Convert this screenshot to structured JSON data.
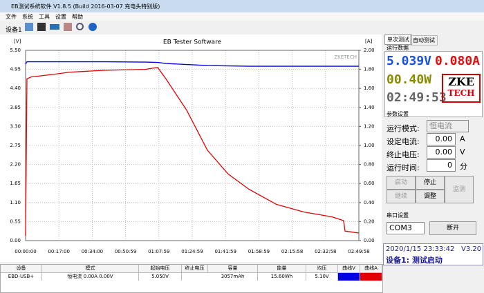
{
  "window": {
    "title": "EB测试系统软件 V1.8.5 (Build 2016-03-07 充电头特别版)"
  },
  "menu": [
    "文件",
    "系统",
    "工具",
    "设置",
    "帮助"
  ],
  "toolbar": {
    "device": "设备1"
  },
  "chart": {
    "type": "line",
    "title": "EB Tester Software",
    "watermark": "ZKETECH",
    "ylabel": "[V]",
    "y2label": "[A]",
    "grid": true,
    "x": [
      0,
      42,
      169,
      910,
      1333,
      2391,
      3660,
      4041,
      4295,
      4930,
      5564,
      6199,
      6834,
      7680,
      8526,
      9373,
      9732,
      9775,
      10198
    ],
    "xlim": [
      0,
      10198
    ],
    "xticks": [
      {
        "value": 0,
        "label": "00:00:00"
      },
      {
        "value": 1020,
        "label": "00:17:00"
      },
      {
        "value": 2040,
        "label": "00:34:00"
      },
      {
        "value": 3059,
        "label": "00:50:59"
      },
      {
        "value": 4079,
        "label": "01:07:59"
      },
      {
        "value": 5099,
        "label": "01:24:59"
      },
      {
        "value": 6119,
        "label": "01:41:59"
      },
      {
        "value": 7139,
        "label": "01:58:59"
      },
      {
        "value": 8158,
        "label": "02:15:58"
      },
      {
        "value": 9178,
        "label": "02:32:58"
      },
      {
        "value": 10198,
        "label": "02:49:58"
      }
    ],
    "ylim": [
      0,
      5.5
    ],
    "yticks": [
      {
        "value": 0,
        "label": "0.00"
      },
      0.55,
      {
        "value": 1.1,
        "label": "1.10"
      },
      1.65,
      {
        "value": 2.2,
        "label": "2.20"
      },
      2.75,
      {
        "value": 3.3,
        "label": "3.30"
      },
      3.85,
      {
        "value": 4.4,
        "label": "4.40"
      },
      4.95,
      {
        "value": 5.5,
        "label": "5.50"
      }
    ],
    "y2lim": [
      0,
      2
    ],
    "y2ticks": [
      {
        "value": 0,
        "label": "0.00"
      },
      {
        "value": 0.2,
        "label": "0.20"
      },
      {
        "value": 0.4,
        "label": "0.40"
      },
      {
        "value": 0.6,
        "label": "0.60"
      },
      {
        "value": 0.8,
        "label": "0.80"
      },
      {
        "value": 1,
        "label": "1.00"
      },
      {
        "value": 1.2,
        "label": "1.20"
      },
      {
        "value": 1.4,
        "label": "1.40"
      },
      {
        "value": 1.6,
        "label": "1.60"
      },
      {
        "value": 1.8,
        "label": "1.80"
      },
      {
        "value": 2,
        "label": "2.00"
      }
    ],
    "series": [
      {
        "color": "#0000e0",
        "values": [
          5.1,
          5.17,
          5.17,
          5.17,
          5.17,
          5.17,
          5.16,
          5.15,
          5.12,
          5.09,
          5.06,
          5.05,
          5.04,
          5.04,
          5.04,
          5.04,
          5.04,
          5.04,
          5.04
        ]
      },
      {
        "color": "#e00000",
        "axis": "y2",
        "values": [
          0.05,
          1.7,
          1.72,
          1.75,
          1.77,
          1.79,
          1.8,
          1.82,
          1.7,
          1.37,
          0.95,
          0.7,
          0.54,
          0.38,
          0.3,
          0.25,
          0.21,
          0.1,
          0.08
        ]
      }
    ]
  },
  "table": {
    "headers": [
      "设备",
      "模式",
      "起始电压",
      "终止电压",
      "容量",
      "能量",
      "均压",
      "曲线V",
      "曲线A"
    ],
    "row": {
      "device": "EBD-USB+",
      "mode": "恒电流  0.00A  0.00V",
      "start_v": "5.050V",
      "capacity": "3057mAh",
      "energy": "15.60Wh",
      "avg_v": "5.10V"
    }
  },
  "panel": {
    "tabs": [
      "单次测试",
      "自动测试"
    ],
    "run_group": "运行数据",
    "voltage": "5.039V",
    "current": "0.080A",
    "power": "00.40W",
    "time": "02:49:53",
    "logo": [
      "ZKE",
      "TECH"
    ],
    "param_group": "参数设置",
    "mode_label": "运行模式:",
    "mode_value": "恒电流",
    "set_current_label": "设定电流:",
    "set_current": "0.00",
    "set_current_unit": "A",
    "stop_v_label": "终止电压:",
    "stop_v": "0.00",
    "stop_v_unit": "V",
    "run_time_label": "运行时间:",
    "run_time": "0",
    "run_time_unit": "分",
    "buttons": [
      "启动",
      "停止",
      "监测",
      "继续",
      "调整"
    ],
    "serial_group": "串口设置",
    "port": "COM3",
    "disconnect": "断开",
    "status_time": "2020/1/15 23:33:42",
    "version": "V3.20",
    "status": "设备1: 测试启动"
  }
}
